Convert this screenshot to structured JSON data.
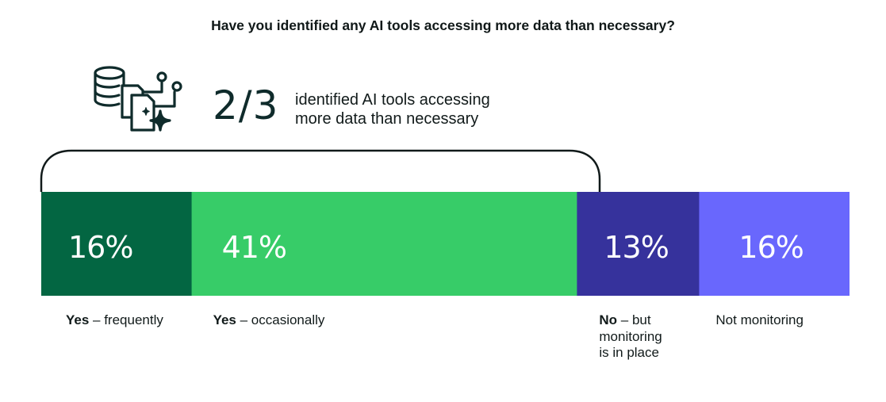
{
  "title": "Have you identified any AI tools accessing more data than necessary?",
  "callout": {
    "figure": "2/3",
    "line1": "identified AI tools accessing",
    "line2": "more data than necessary",
    "icon": "database-documents-sparkle-icon"
  },
  "chart_data": {
    "type": "bar",
    "orientation": "horizontal-stacked",
    "categories": [
      "Yes – frequently",
      "Yes – occasionally",
      "No – but monitoring is in place",
      "Not monitoring"
    ],
    "values": [
      16,
      41,
      13,
      16
    ],
    "value_labels": [
      "16%",
      "41%",
      "13%",
      "16%"
    ],
    "colors": [
      "#036642",
      "#37cc68",
      "#36329c",
      "#6967fd"
    ],
    "label_color": "#ffffff",
    "bracket_covers": [
      0,
      1
    ]
  },
  "labels": [
    {
      "bold": "Yes",
      "rest": " – frequently"
    },
    {
      "bold": "Yes",
      "rest": " – occasionally"
    },
    {
      "bold": "No",
      "rest": " – but",
      "line2": "monitoring",
      "line3": "is in place"
    },
    {
      "bold": "",
      "rest": "Not monitoring"
    }
  ]
}
